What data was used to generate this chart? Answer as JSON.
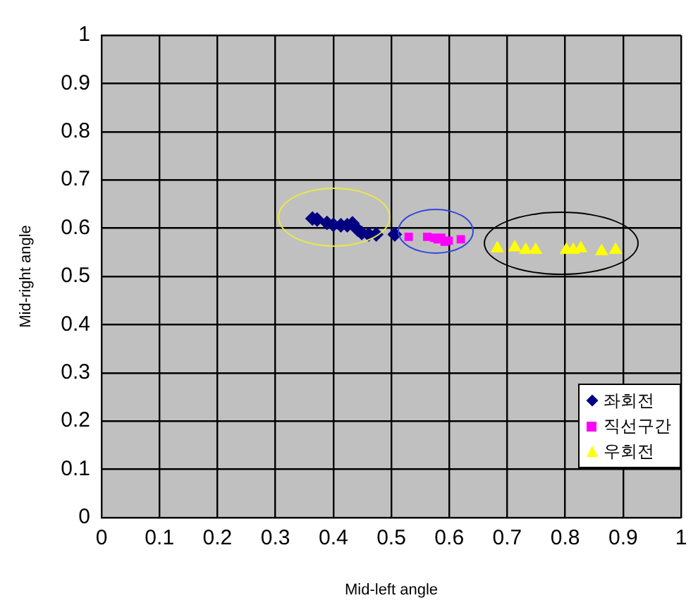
{
  "chart_data": {
    "type": "scatter",
    "xlabel": "Mid-left angle",
    "ylabel": "Mid-right angle",
    "xlim": [
      0,
      1
    ],
    "ylim": [
      0,
      1
    ],
    "xticks": [
      0,
      0.1,
      0.2,
      0.3,
      0.4,
      0.5,
      0.6,
      0.7,
      0.8,
      0.9,
      1
    ],
    "yticks": [
      0,
      0.1,
      0.2,
      0.3,
      0.4,
      0.5,
      0.6,
      0.7,
      0.8,
      0.9,
      1
    ],
    "grid": true,
    "legend": "bottom right",
    "series": [
      {
        "name": "좌회전",
        "color": "#000080",
        "marker": "diamond",
        "x": [
          0.364,
          0.372,
          0.389,
          0.4,
          0.413,
          0.424,
          0.433,
          0.442,
          0.449,
          0.461,
          0.474,
          0.506
        ],
        "values": [
          0.62,
          0.618,
          0.611,
          0.607,
          0.606,
          0.606,
          0.61,
          0.597,
          0.59,
          0.587,
          0.587,
          0.587
        ]
      },
      {
        "name": "직선구간",
        "color": "#ff00ff",
        "marker": "square",
        "x": [
          0.53,
          0.562,
          0.574,
          0.58,
          0.586,
          0.592,
          0.599,
          0.62
        ],
        "values": [
          0.582,
          0.582,
          0.58,
          0.577,
          0.58,
          0.572,
          0.574,
          0.577
        ]
      },
      {
        "name": "우회전",
        "color": "#ffff00",
        "marker": "triangle",
        "x": [
          0.683,
          0.713,
          0.732,
          0.749,
          0.802,
          0.814,
          0.827,
          0.863,
          0.887
        ],
        "values": [
          0.558,
          0.56,
          0.555,
          0.555,
          0.555,
          0.555,
          0.558,
          0.552,
          0.555
        ]
      }
    ]
  }
}
